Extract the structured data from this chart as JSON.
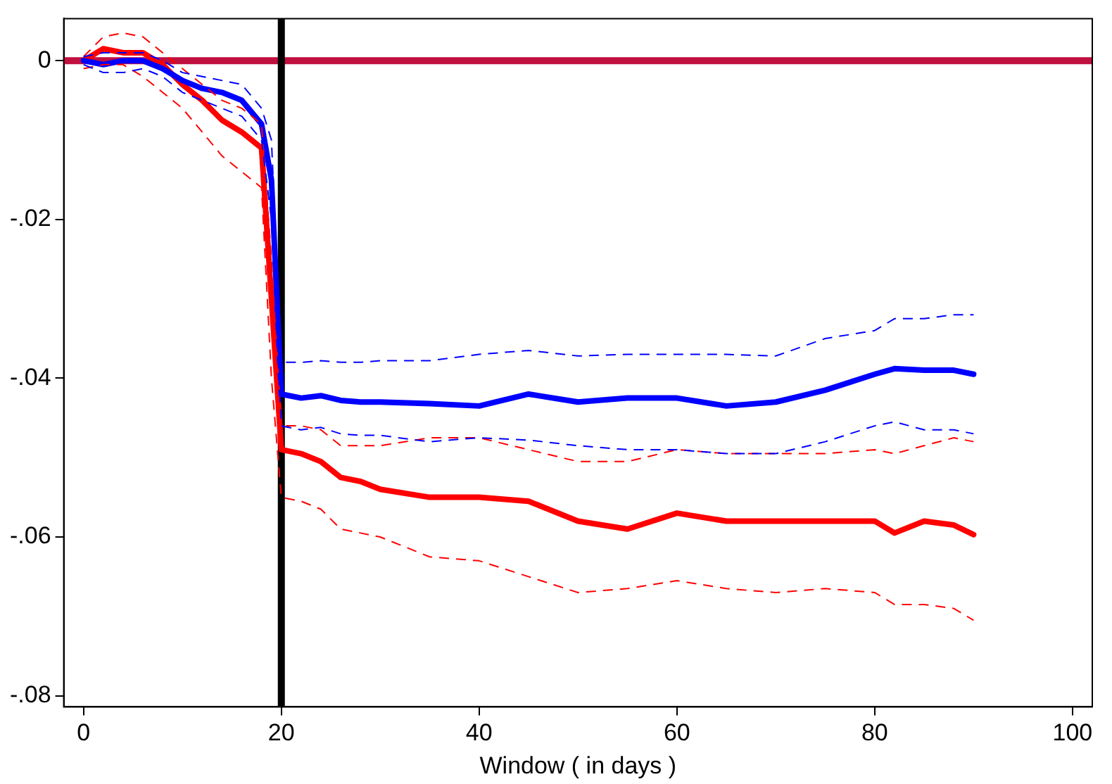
{
  "chart_data": {
    "type": "line",
    "xlabel": "Window ( in days )",
    "xlim": [
      -2,
      102
    ],
    "xticks": [
      0,
      20,
      40,
      60,
      80,
      100
    ],
    "ylim": [
      -0.0814,
      0.0053
    ],
    "yticks": [
      {
        "value": -0.08,
        "label": "-.08"
      },
      {
        "value": -0.06,
        "label": "-.06"
      },
      {
        "value": -0.04,
        "label": "-.04"
      },
      {
        "value": -0.02,
        "label": "-.02"
      },
      0
    ],
    "grid": false,
    "legend": false,
    "marker": "none",
    "line_style": "solid",
    "x": [
      0,
      2,
      4,
      6,
      8,
      10,
      12,
      14,
      16,
      18,
      19,
      20,
      22,
      24,
      26,
      28,
      30,
      35,
      40,
      45,
      50,
      55,
      60,
      65,
      70,
      75,
      80,
      82,
      85,
      88,
      90
    ],
    "series": [
      {
        "color": "#0000ff",
        "line_style": "dashed",
        "values": [
          0.0005,
          0.001,
          0.001,
          0.001,
          0,
          -0.0015,
          -0.002,
          -0.0025,
          -0.003,
          -0.006,
          -0.01,
          -0.038,
          -0.038,
          -0.0378,
          -0.038,
          -0.038,
          -0.0378,
          -0.0378,
          -0.037,
          -0.0365,
          -0.0372,
          -0.037,
          -0.037,
          -0.037,
          -0.0372,
          -0.035,
          -0.034,
          -0.0325,
          -0.0325,
          -0.032,
          -0.032
        ]
      },
      {
        "color": "#0000ff",
        "line_style": "dashed",
        "values": [
          -0.0005,
          -0.0015,
          -0.0015,
          -0.001,
          -0.002,
          -0.004,
          -0.005,
          -0.006,
          -0.007,
          -0.01,
          -0.02,
          -0.046,
          -0.0465,
          -0.0462,
          -0.047,
          -0.0472,
          -0.0472,
          -0.048,
          -0.0475,
          -0.0478,
          -0.0485,
          -0.049,
          -0.049,
          -0.0495,
          -0.0495,
          -0.048,
          -0.046,
          -0.0455,
          -0.0465,
          -0.0465,
          -0.047
        ]
      },
      {
        "color": "#ff0000",
        "line_style": "dashed",
        "values": [
          0.0005,
          0.003,
          0.0035,
          0.003,
          0.001,
          -0.001,
          -0.003,
          -0.005,
          -0.006,
          -0.008,
          -0.025,
          -0.046,
          -0.046,
          -0.0465,
          -0.0485,
          -0.0485,
          -0.0485,
          -0.0475,
          -0.0475,
          -0.049,
          -0.0505,
          -0.0505,
          -0.049,
          -0.0495,
          -0.0495,
          -0.0495,
          -0.049,
          -0.0495,
          -0.0485,
          -0.0475,
          -0.048
        ]
      },
      {
        "color": "#ff0000",
        "line_style": "dashed",
        "values": [
          -0.001,
          -0.0005,
          -0.0005,
          -0.002,
          -0.004,
          -0.006,
          -0.009,
          -0.012,
          -0.014,
          -0.016,
          -0.04,
          -0.055,
          -0.0555,
          -0.0565,
          -0.059,
          -0.0595,
          -0.06,
          -0.0625,
          -0.063,
          -0.065,
          -0.067,
          -0.0665,
          -0.0655,
          -0.0665,
          -0.067,
          -0.0665,
          -0.067,
          -0.0685,
          -0.0685,
          -0.069,
          -0.0705
        ]
      },
      {
        "color": "#0000ff",
        "values": [
          0,
          -0.0005,
          0,
          0,
          -0.001,
          -0.0025,
          -0.0035,
          -0.004,
          -0.005,
          -0.008,
          -0.015,
          -0.042,
          -0.0425,
          -0.0422,
          -0.0428,
          -0.043,
          -0.043,
          -0.0432,
          -0.0435,
          -0.042,
          -0.043,
          -0.0425,
          -0.0425,
          -0.0435,
          -0.043,
          -0.0415,
          -0.0395,
          -0.0388,
          -0.039,
          -0.039,
          -0.0395
        ]
      },
      {
        "color": "#ff0000",
        "values": [
          0,
          0.0015,
          0.001,
          0.001,
          -0.0005,
          -0.003,
          -0.005,
          -0.0075,
          -0.009,
          -0.011,
          -0.03,
          -0.049,
          -0.0495,
          -0.0505,
          -0.0525,
          -0.053,
          -0.054,
          -0.055,
          -0.055,
          -0.0555,
          -0.058,
          -0.059,
          -0.057,
          -0.058,
          -0.058,
          -0.058,
          -0.058,
          -0.0595,
          -0.058,
          -0.0585,
          -0.0597
        ]
      }
    ],
    "ref_lines": [
      {
        "axis": "y",
        "value": 0,
        "color": "#c0103f"
      },
      {
        "axis": "x",
        "value": 20,
        "color": "#000000"
      }
    ]
  }
}
